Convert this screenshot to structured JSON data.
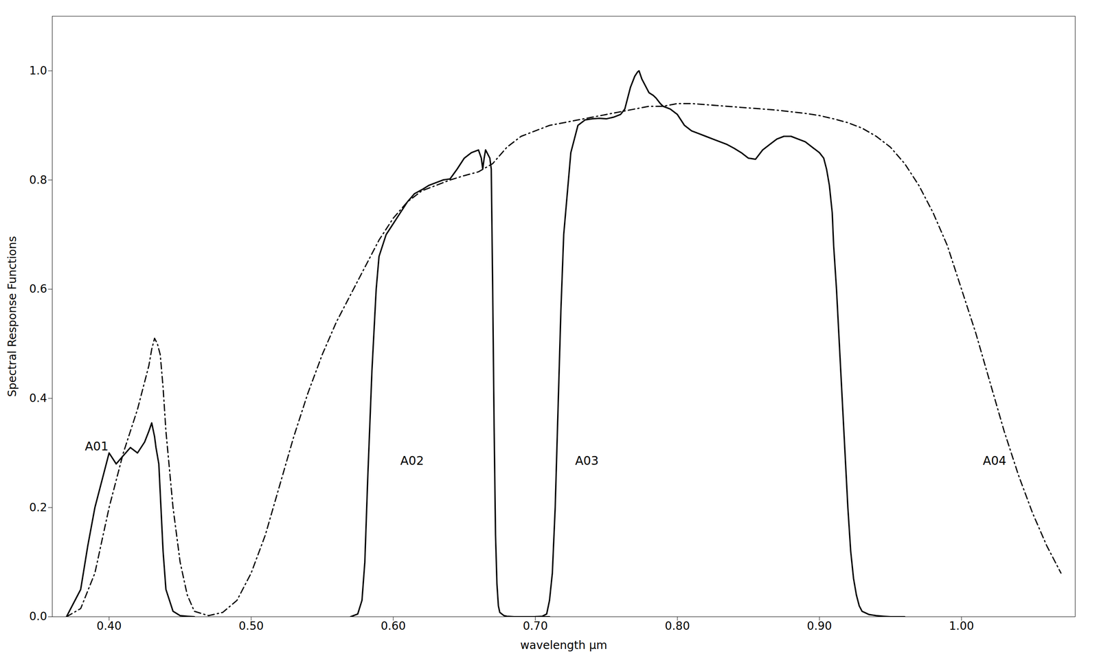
{
  "chart_data": {
    "type": "line",
    "xlabel": "wavelength μm",
    "ylabel": "Spectral Response Functions",
    "xlim": [
      0.36,
      1.08
    ],
    "ylim": [
      0.0,
      1.1
    ],
    "xticks": [
      {
        "value": 0.4,
        "label": "0.40"
      },
      {
        "value": 0.5,
        "label": "0.50"
      },
      {
        "value": 0.6,
        "label": "0.60"
      },
      {
        "value": 0.7,
        "label": "0.70"
      },
      {
        "value": 0.8,
        "label": "0.80"
      },
      {
        "value": 0.9,
        "label": "0.90"
      },
      {
        "value": 1.0,
        "label": "1.00"
      }
    ],
    "yticks": [
      {
        "value": 0.0,
        "label": "0.0"
      },
      0.2,
      0.4,
      0.6,
      0.8,
      {
        "value": 1.0,
        "label": "1.0"
      }
    ],
    "grid": false,
    "annotations": [
      {
        "text": "A01",
        "x": 0.383,
        "y": 0.305
      },
      {
        "text": "A02",
        "x": 0.605,
        "y": 0.278
      },
      {
        "text": "A03",
        "x": 0.728,
        "y": 0.278
      },
      {
        "text": "A04",
        "x": 1.015,
        "y": 0.278
      }
    ],
    "series": [
      {
        "color": "#000000",
        "line_style": "solid",
        "x": [
          0.37,
          0.38,
          0.385,
          0.39,
          0.395,
          0.4,
          0.405,
          0.41,
          0.415,
          0.42,
          0.425,
          0.428,
          0.43,
          0.432,
          0.433,
          0.435,
          0.438,
          0.44,
          0.445,
          0.45,
          0.455,
          0.46
        ],
        "values": [
          0.0,
          0.05,
          0.13,
          0.2,
          0.25,
          0.3,
          0.28,
          0.295,
          0.31,
          0.3,
          0.32,
          0.34,
          0.355,
          0.33,
          0.31,
          0.28,
          0.12,
          0.05,
          0.01,
          0.002,
          0.001,
          0.0
        ]
      },
      {
        "color": "#000000",
        "line_style": "dashdot",
        "x": [
          0.37,
          0.38,
          0.39,
          0.4,
          0.41,
          0.415,
          0.42,
          0.425,
          0.428,
          0.43,
          0.432,
          0.434,
          0.436,
          0.438,
          0.44,
          0.445,
          0.45,
          0.455,
          0.46,
          0.47,
          0.48,
          0.49,
          0.5,
          0.51,
          0.52,
          0.53,
          0.54,
          0.55,
          0.56,
          0.57,
          0.58,
          0.59,
          0.6,
          0.61,
          0.62,
          0.63,
          0.64,
          0.65,
          0.66,
          0.67,
          0.68,
          0.69,
          0.7,
          0.71,
          0.72,
          0.73,
          0.74,
          0.75,
          0.76,
          0.77,
          0.78,
          0.79,
          0.8,
          0.81,
          0.82,
          0.83,
          0.84,
          0.85,
          0.86,
          0.87,
          0.88,
          0.89,
          0.9,
          0.91,
          0.92,
          0.93,
          0.94,
          0.95,
          0.96,
          0.97,
          0.98,
          0.99,
          1.0,
          1.01,
          1.02,
          1.03,
          1.04,
          1.05,
          1.06,
          1.07
        ],
        "values": [
          0.0,
          0.015,
          0.08,
          0.2,
          0.3,
          0.34,
          0.38,
          0.43,
          0.46,
          0.49,
          0.51,
          0.5,
          0.48,
          0.42,
          0.34,
          0.2,
          0.1,
          0.04,
          0.01,
          0.002,
          0.008,
          0.03,
          0.08,
          0.15,
          0.24,
          0.33,
          0.41,
          0.48,
          0.54,
          0.59,
          0.64,
          0.69,
          0.73,
          0.76,
          0.78,
          0.79,
          0.8,
          0.808,
          0.815,
          0.83,
          0.86,
          0.88,
          0.89,
          0.9,
          0.905,
          0.91,
          0.915,
          0.92,
          0.925,
          0.93,
          0.935,
          0.935,
          0.94,
          0.94,
          0.938,
          0.936,
          0.934,
          0.932,
          0.93,
          0.928,
          0.925,
          0.922,
          0.918,
          0.912,
          0.905,
          0.895,
          0.88,
          0.86,
          0.83,
          0.79,
          0.74,
          0.68,
          0.6,
          0.52,
          0.43,
          0.34,
          0.26,
          0.19,
          0.13,
          0.08
        ]
      },
      {
        "color": "#000000",
        "line_style": "solid",
        "x": [
          0.57,
          0.575,
          0.578,
          0.58,
          0.582,
          0.585,
          0.588,
          0.59,
          0.595,
          0.6,
          0.605,
          0.61,
          0.615,
          0.62,
          0.625,
          0.63,
          0.635,
          0.64,
          0.645,
          0.65,
          0.655,
          0.66,
          0.662,
          0.663,
          0.664,
          0.665,
          0.666,
          0.667,
          0.668,
          0.669,
          0.67,
          0.671,
          0.672,
          0.673,
          0.674,
          0.675,
          0.678,
          0.68,
          0.685,
          0.69,
          0.695,
          0.7,
          0.705,
          0.71
        ],
        "values": [
          0.0,
          0.005,
          0.03,
          0.1,
          0.25,
          0.45,
          0.6,
          0.66,
          0.7,
          0.72,
          0.74,
          0.76,
          0.775,
          0.782,
          0.79,
          0.795,
          0.8,
          0.802,
          0.82,
          0.84,
          0.85,
          0.855,
          0.84,
          0.82,
          0.84,
          0.855,
          0.85,
          0.845,
          0.84,
          0.82,
          0.6,
          0.35,
          0.15,
          0.06,
          0.02,
          0.008,
          0.002,
          0.001,
          0.0,
          0.0,
          0.0,
          0.0,
          0.0,
          0.0
        ]
      },
      {
        "color": "#000000",
        "line_style": "solid",
        "x": [
          0.7,
          0.705,
          0.708,
          0.71,
          0.712,
          0.714,
          0.716,
          0.718,
          0.72,
          0.725,
          0.73,
          0.735,
          0.74,
          0.745,
          0.75,
          0.755,
          0.76,
          0.763,
          0.765,
          0.767,
          0.77,
          0.772,
          0.773,
          0.775,
          0.778,
          0.78,
          0.783,
          0.785,
          0.788,
          0.79,
          0.795,
          0.8,
          0.805,
          0.81,
          0.815,
          0.82,
          0.825,
          0.83,
          0.835,
          0.84,
          0.845,
          0.85,
          0.855,
          0.86,
          0.865,
          0.87,
          0.875,
          0.88,
          0.885,
          0.89,
          0.895,
          0.9,
          0.903,
          0.905,
          0.907,
          0.909,
          0.91,
          0.912,
          0.914,
          0.916,
          0.918,
          0.92,
          0.922,
          0.924,
          0.926,
          0.928,
          0.93,
          0.935,
          0.94,
          0.945,
          0.95,
          0.955,
          0.96
        ],
        "values": [
          0.0,
          0.001,
          0.005,
          0.03,
          0.08,
          0.2,
          0.38,
          0.56,
          0.7,
          0.85,
          0.9,
          0.91,
          0.912,
          0.913,
          0.912,
          0.915,
          0.92,
          0.93,
          0.95,
          0.97,
          0.99,
          0.998,
          1.0,
          0.985,
          0.97,
          0.96,
          0.955,
          0.95,
          0.94,
          0.935,
          0.93,
          0.92,
          0.9,
          0.89,
          0.885,
          0.88,
          0.875,
          0.87,
          0.865,
          0.858,
          0.85,
          0.84,
          0.838,
          0.855,
          0.865,
          0.875,
          0.88,
          0.88,
          0.875,
          0.87,
          0.86,
          0.85,
          0.84,
          0.82,
          0.79,
          0.74,
          0.68,
          0.6,
          0.5,
          0.4,
          0.3,
          0.2,
          0.12,
          0.07,
          0.04,
          0.02,
          0.01,
          0.004,
          0.002,
          0.001,
          0.0,
          0.0,
          0.0
        ]
      }
    ]
  }
}
